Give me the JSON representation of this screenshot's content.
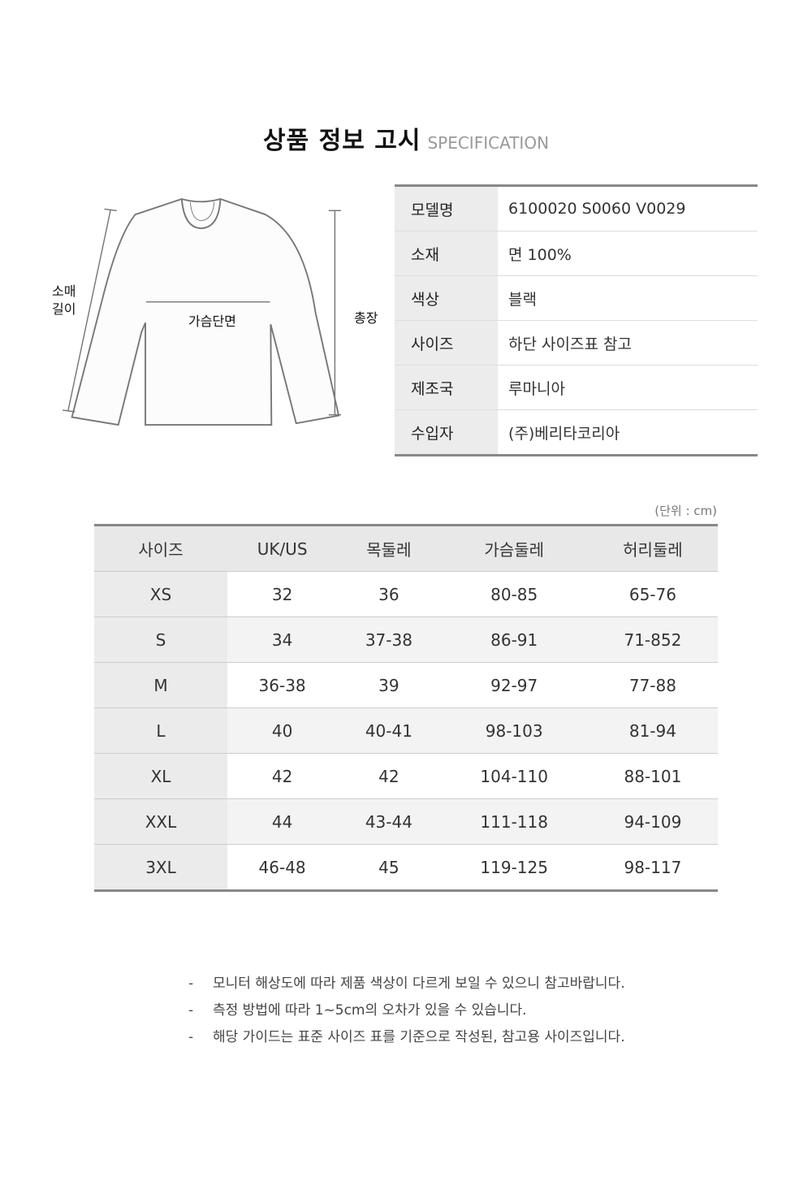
{
  "title": {
    "ko": "상품 정보 고시",
    "en": "SPECIFICATION"
  },
  "diagram": {
    "sleeve": "소매\n길이",
    "sleeve_1": "소매",
    "sleeve_2": "길이",
    "chest": "가슴단면",
    "length": "총장"
  },
  "spec": [
    {
      "key": "모델명",
      "value": "6100020 S0060 V0029"
    },
    {
      "key": "소재",
      "value": "면 100%"
    },
    {
      "key": "색상",
      "value": "블랙"
    },
    {
      "key": "사이즈",
      "value": "하단 사이즈표 참고"
    },
    {
      "key": "제조국",
      "value": "루마니아"
    },
    {
      "key": "수입자",
      "value": "(주)베리타코리아"
    }
  ],
  "unit": "(단위 : cm)",
  "size_table": {
    "headers": [
      "사이즈",
      "UK/US",
      "목둘레",
      "가슴둘레",
      "허리둘레"
    ],
    "rows": [
      [
        "XS",
        "32",
        "36",
        "80-85",
        "65-76"
      ],
      [
        "S",
        "34",
        "37-38",
        "86-91",
        "71-852"
      ],
      [
        "M",
        "36-38",
        "39",
        "92-97",
        "77-88"
      ],
      [
        "L",
        "40",
        "40-41",
        "98-103",
        "81-94"
      ],
      [
        "XL",
        "42",
        "42",
        "104-110",
        "88-101"
      ],
      [
        "XXL",
        "44",
        "43-44",
        "111-118",
        "94-109"
      ],
      [
        "3XL",
        "46-48",
        "45",
        "119-125",
        "98-117"
      ]
    ]
  },
  "notes": [
    "모니터 해상도에 따라 제품 색상이 다르게 보일 수 있으니 참고바랍니다.",
    "측정 방법에 따라 1~5cm의 오차가 있을 수 있습니다.",
    "해당 가이드는 표준 사이즈 표를 기준으로 작성된, 참고용 사이즈입니다."
  ]
}
